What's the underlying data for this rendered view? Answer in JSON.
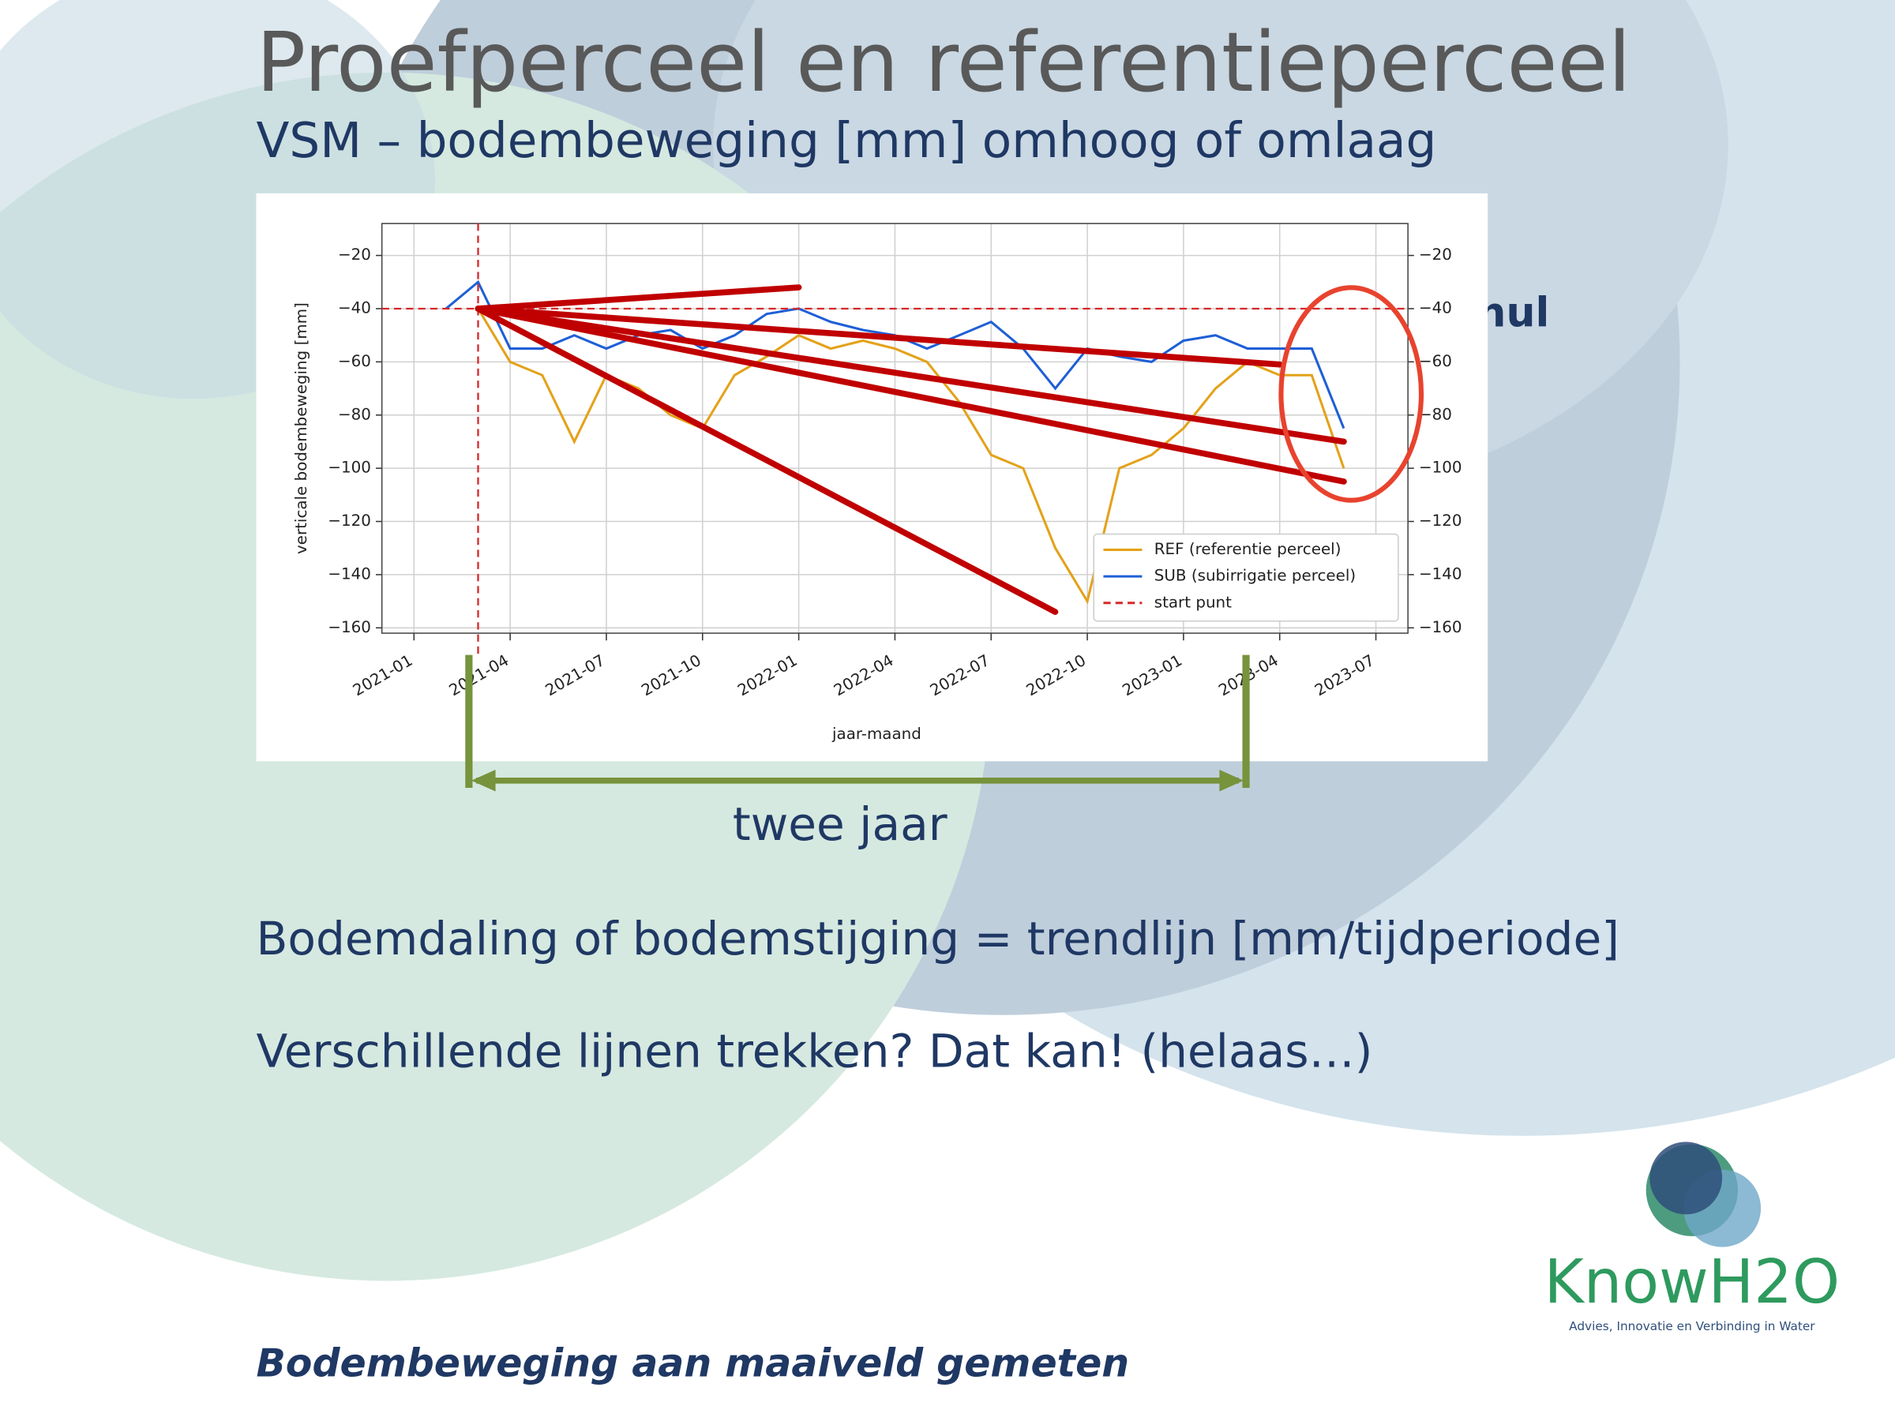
{
  "slide": {
    "title": "Proefperceel en referentieperceel",
    "subtitle": "VSM – bodembeweging [mm] omhoog of omlaag",
    "side_note": "nul",
    "span_label": "twee jaar",
    "lines": [
      "Bodemdaling of bodemstijging = trendlijn [mm/tijdperiode]",
      "Verschillende lijnen trekken? Dat kan! (helaas…)"
    ],
    "footer": "Bodembeweging aan maaiveld gemeten",
    "logo": {
      "name": "KnowH2O",
      "tagline": "Advies, Innovatie en Verbinding in Water"
    }
  },
  "chart_data": {
    "type": "line",
    "x_label": "jaar-maand",
    "y_label": "verticale bodembeweging [mm]",
    "x": [
      "2021-02",
      "2021-03",
      "2021-04",
      "2021-05",
      "2021-06",
      "2021-07",
      "2021-08",
      "2021-09",
      "2021-10",
      "2021-11",
      "2021-12",
      "2022-01",
      "2022-02",
      "2022-03",
      "2022-04",
      "2022-05",
      "2022-06",
      "2022-07",
      "2022-08",
      "2022-09",
      "2022-10",
      "2022-11",
      "2022-12",
      "2023-01",
      "2023-02",
      "2023-03",
      "2023-04",
      "2023-05",
      "2023-06"
    ],
    "series": [
      {
        "name": "REF (referentie perceel)",
        "color": "#e3a21a",
        "values": [
          null,
          -40,
          -60,
          -65,
          -90,
          -65,
          -70,
          -80,
          -85,
          -65,
          -58,
          -50,
          -55,
          -52,
          -55,
          -60,
          -75,
          -95,
          -100,
          -130,
          -150,
          -100,
          -95,
          -85,
          -70,
          -60,
          -65,
          -65,
          -100
        ]
      },
      {
        "name": "SUB (subirrigatie perceel)",
        "color": "#1f5fd6",
        "values": [
          -40,
          -30,
          -55,
          -55,
          -50,
          -55,
          -50,
          -48,
          -55,
          -50,
          -42,
          -40,
          -45,
          -48,
          -50,
          -55,
          -50,
          -45,
          -55,
          -70,
          -55,
          -58,
          -60,
          -52,
          -50,
          -55,
          -55,
          -55,
          -85
        ]
      }
    ],
    "start_point": {
      "name": "start punt",
      "color": "#d62728",
      "x": "2021-03",
      "y": -40
    },
    "trend_lines": [
      {
        "x": "2022-01",
        "y": -32
      },
      {
        "x": "2023-04",
        "y": -61
      },
      {
        "x": "2023-06",
        "y": -90
      },
      {
        "x": "2023-06",
        "y": -105
      },
      {
        "x": "2022-09",
        "y": -154
      }
    ],
    "trend_color": "#c00000",
    "xlim": [
      "2020-12",
      "2023-08"
    ],
    "xticks": [
      "2021-01",
      "2021-04",
      "2021-07",
      "2021-10",
      "2022-01",
      "2022-04",
      "2022-07",
      "2022-10",
      "2023-01",
      "2023-04",
      "2023-07"
    ],
    "ylim": [
      -162,
      -8
    ],
    "yticks": [
      {
        "value": -20,
        "label": "−20"
      },
      {
        "value": -40,
        "label": "−40"
      },
      {
        "value": -60,
        "label": "−60"
      },
      {
        "value": -80,
        "label": "−80"
      },
      {
        "value": -100,
        "label": "−100"
      },
      {
        "value": -120,
        "label": "−120"
      },
      {
        "value": -140,
        "label": "−140"
      },
      {
        "value": -160,
        "label": "−160"
      }
    ],
    "grid": true,
    "legend": "lower right"
  }
}
